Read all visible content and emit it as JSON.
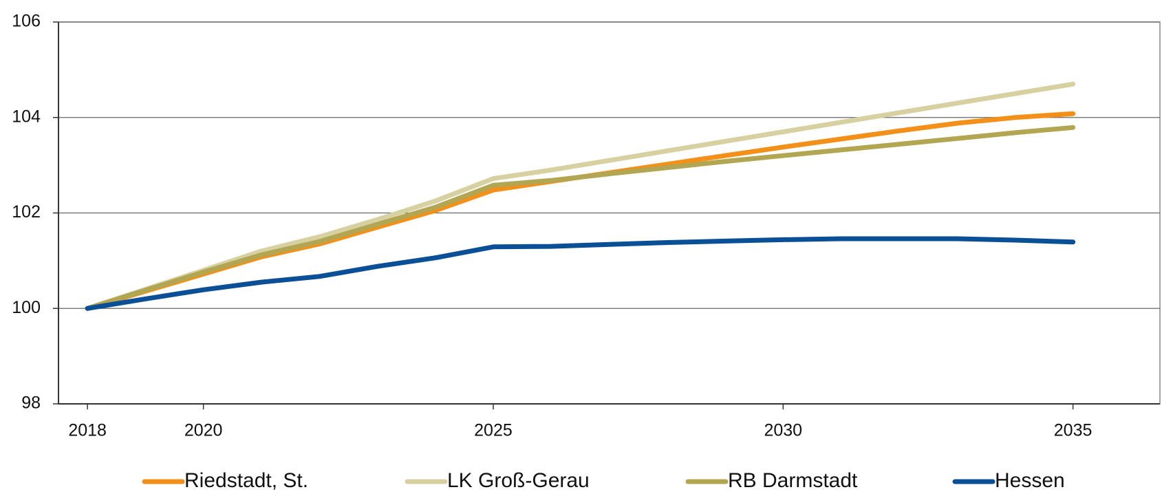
{
  "chart_data": {
    "type": "line",
    "x": [
      2018,
      2019,
      2020,
      2021,
      2022,
      2023,
      2024,
      2025,
      2026,
      2027,
      2028,
      2029,
      2030,
      2031,
      2032,
      2033,
      2034,
      2035
    ],
    "series": [
      {
        "name": "Riedstadt, St.",
        "color": "#f39019",
        "values": [
          100,
          100.36,
          100.72,
          101.08,
          101.35,
          101.7,
          102.05,
          102.48,
          102.66,
          102.84,
          103.02,
          103.2,
          103.38,
          103.55,
          103.72,
          103.88,
          104.0,
          104.08
        ]
      },
      {
        "name": "LK Groß-Gerau",
        "color": "#d7d1a2",
        "values": [
          100,
          100.4,
          100.8,
          101.2,
          101.5,
          101.86,
          102.25,
          102.72,
          102.9,
          103.1,
          103.3,
          103.5,
          103.7,
          103.9,
          104.1,
          104.3,
          104.5,
          104.7
        ]
      },
      {
        "name": "RB Darmstadt",
        "color": "#b3a653",
        "values": [
          100,
          100.38,
          100.76,
          101.12,
          101.4,
          101.76,
          102.12,
          102.58,
          102.68,
          102.82,
          102.95,
          103.08,
          103.2,
          103.32,
          103.44,
          103.56,
          103.68,
          103.79
        ]
      },
      {
        "name": "Hessen",
        "color": "#0b4f96",
        "values": [
          100,
          100.2,
          100.39,
          100.55,
          100.67,
          100.88,
          101.06,
          101.29,
          101.3,
          101.34,
          101.38,
          101.41,
          101.44,
          101.46,
          101.46,
          101.46,
          101.43,
          101.39
        ]
      }
    ],
    "xlim": [
      2017.5,
      2036.5
    ],
    "xticks": [
      2018,
      2020,
      2025,
      2030,
      2035
    ],
    "ylim": [
      98,
      106
    ],
    "yticks": [
      98,
      100,
      102,
      104,
      106
    ],
    "grid": true,
    "legend": "bottom"
  }
}
